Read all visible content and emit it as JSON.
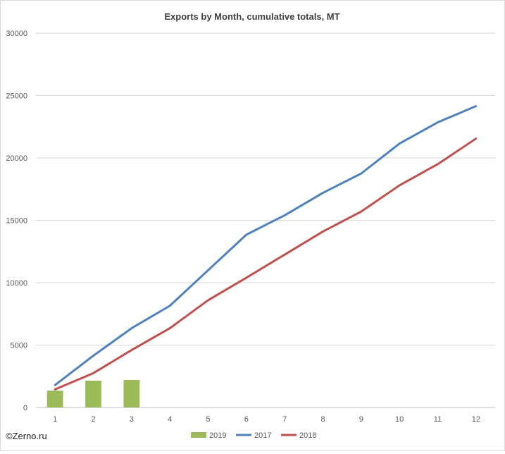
{
  "chart_data": {
    "type": "bar+line",
    "title": "Exports by Month, cumulative totals, MT",
    "xlabel": "",
    "ylabel": "",
    "categories": [
      "1",
      "2",
      "3",
      "4",
      "5",
      "6",
      "7",
      "8",
      "9",
      "10",
      "11",
      "12"
    ],
    "ylim": [
      0,
      30000
    ],
    "yticks": [
      0,
      5000,
      10000,
      15000,
      20000,
      25000,
      30000
    ],
    "grid": true,
    "legend_position": "bottom",
    "series": [
      {
        "name": "2019",
        "type": "bar",
        "color": "#9bbb59",
        "values": [
          1350,
          2150,
          2200,
          null,
          null,
          null,
          null,
          null,
          null,
          null,
          null,
          null
        ]
      },
      {
        "name": "2017",
        "type": "line",
        "color": "#4f81bd",
        "values": [
          1800,
          4150,
          6350,
          8150,
          11000,
          13850,
          15400,
          17200,
          18750,
          21150,
          22850,
          24150
        ]
      },
      {
        "name": "2018",
        "type": "line",
        "color": "#c0504d",
        "values": [
          1450,
          2750,
          4600,
          6350,
          8600,
          10400,
          12250,
          14100,
          15700,
          17800,
          19500,
          21550
        ]
      }
    ]
  },
  "footer": {
    "copyright": "©Zerno.ru"
  }
}
